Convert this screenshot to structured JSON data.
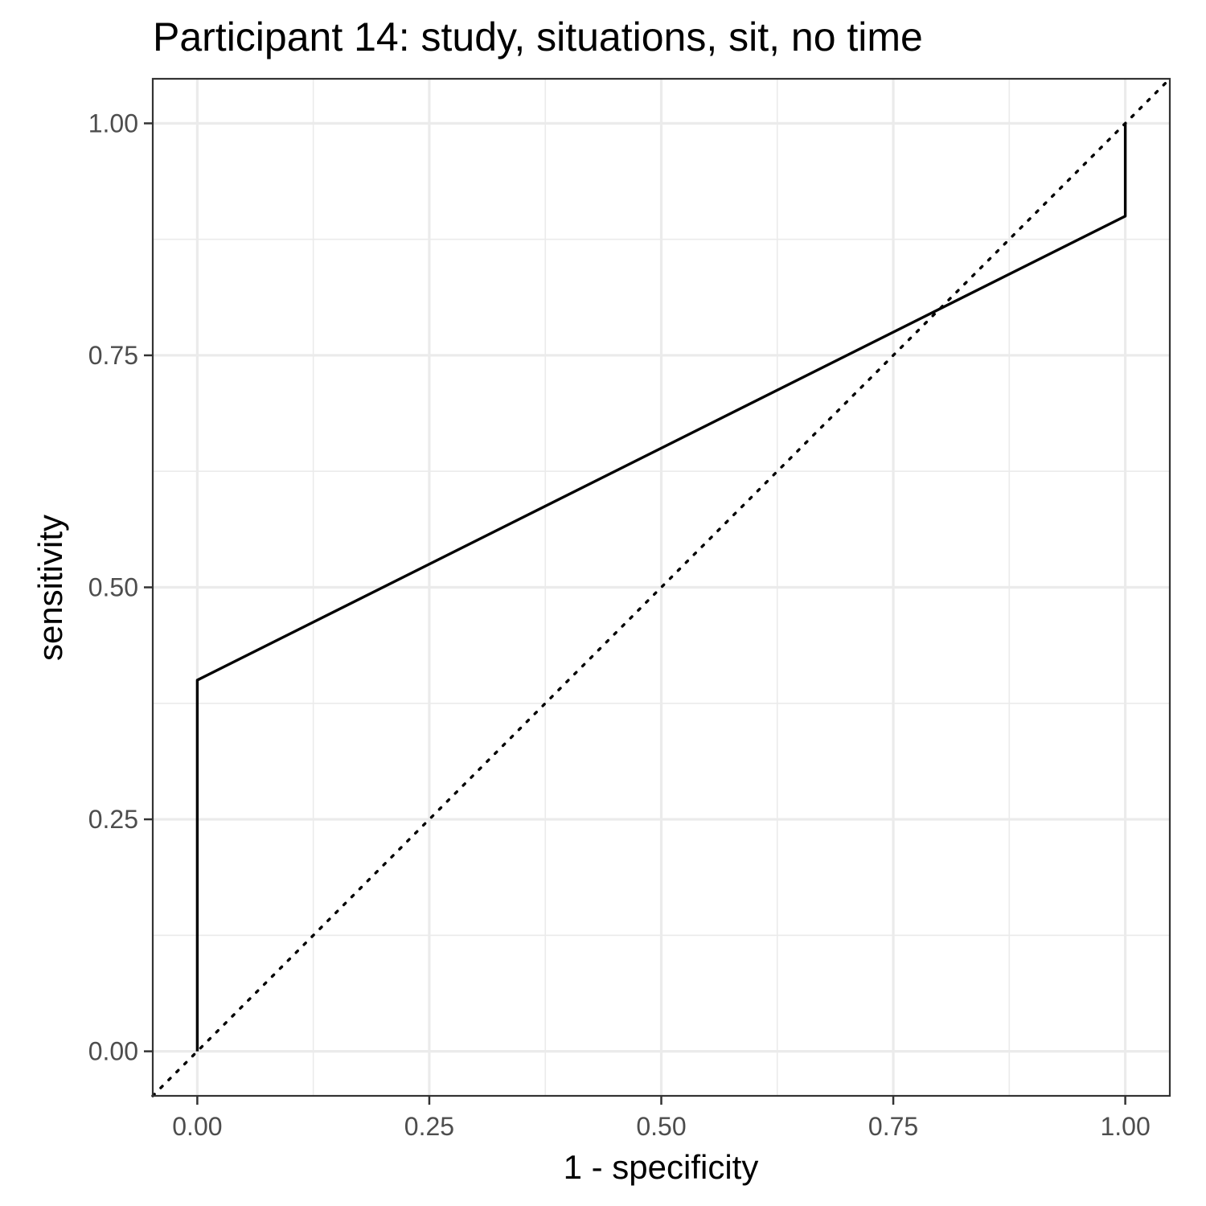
{
  "chart_data": {
    "type": "line",
    "title": "Participant 14: study, situations, sit, no time",
    "xlabel": "1 - specificity",
    "ylabel": "sensitivity",
    "xlim": [
      -0.048,
      1.048
    ],
    "ylim": [
      -0.048,
      1.048
    ],
    "x_ticks": [
      "0.00",
      "0.25",
      "0.50",
      "0.75",
      "1.00"
    ],
    "y_ticks": [
      "0.00",
      "0.25",
      "0.50",
      "0.75",
      "1.00"
    ],
    "grid": true,
    "legend": "none",
    "series": [
      {
        "x": [
          0.0,
          0.0,
          1.0,
          1.0
        ],
        "y": [
          0.0,
          0.4,
          0.9,
          1.0
        ]
      }
    ],
    "reference_line": {
      "style": "dotted",
      "slope": 1,
      "intercept": 0
    }
  }
}
